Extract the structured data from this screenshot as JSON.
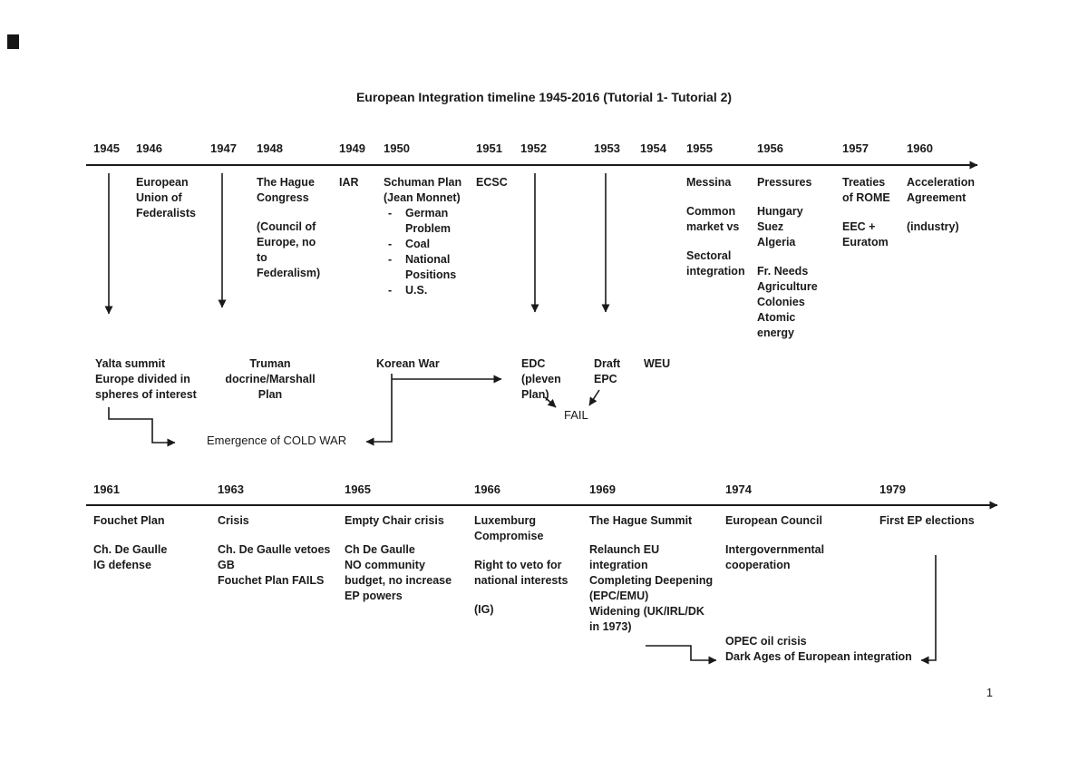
{
  "page": {
    "title": "European Integration timeline 1945-2016 (Tutorial 1- Tutorial 2)",
    "page_number": "1"
  },
  "colors": {
    "ink": "#1a1a1a",
    "paper": "#ffffff"
  },
  "timeline1": {
    "years": [
      "1945",
      "1946",
      "1947",
      "1948",
      "1949",
      "1950",
      "1951",
      "1952",
      "1953",
      "1954",
      "1955",
      "1956",
      "1957",
      "1960"
    ],
    "events": {
      "federalists": [
        "European",
        "Union of",
        "Federalists"
      ],
      "hague_congress": [
        "The Hague",
        "Congress",
        {
          "text": "(Council of",
          "gap": true
        },
        "Europe, no",
        "to",
        "Federalism)"
      ],
      "iar": [
        "IAR"
      ],
      "schuman_plan": [
        "Schuman Plan",
        "(Jean Monnet)",
        {
          "text": "German",
          "bullet": "-"
        },
        {
          "text": "Problem",
          "indent": true
        },
        {
          "text": "Coal",
          "bullet": "-"
        },
        {
          "text": "National",
          "bullet": "-"
        },
        {
          "text": "Positions",
          "indent": true
        },
        {
          "text": "U.S.",
          "bullet": "-"
        }
      ],
      "ecsc": [
        "ECSC"
      ],
      "messina": [
        "Messina",
        {
          "text": "Common",
          "gap": true
        },
        "market vs",
        {
          "text": "Sectoral",
          "gap": true
        },
        "integration"
      ],
      "pressures": [
        "Pressures",
        {
          "text": "Hungary",
          "gap": true
        },
        "Suez",
        "Algeria",
        {
          "text": "Fr. Needs",
          "gap": true
        },
        "Agriculture",
        "Colonies",
        "Atomic",
        "energy"
      ],
      "treaties_of_rome": [
        "Treaties",
        "of ROME",
        {
          "text": "EEC +",
          "gap": true
        },
        "Euratom"
      ],
      "acceleration": [
        "Acceleration",
        "Agreement",
        {
          "text": "(industry)",
          "gap": true
        }
      ]
    },
    "below": {
      "yalta": [
        "Yalta summit",
        "Europe divided in",
        "spheres of interest"
      ],
      "truman": [
        "Truman",
        "docrine/Marshall",
        "Plan"
      ],
      "korean_war": [
        "Korean War"
      ],
      "edc": [
        "EDC",
        "(pleven",
        "Plan)"
      ],
      "draft_epc": [
        "Draft",
        "EPC"
      ],
      "weu": [
        "WEU"
      ],
      "fail": "FAIL",
      "cold_war": "Emergence of COLD WAR"
    }
  },
  "timeline2": {
    "years": [
      "1961",
      "1963",
      "1965",
      "1966",
      "1969",
      "1974",
      "1979"
    ],
    "events": {
      "fouchet": [
        "Fouchet Plan",
        {
          "text": "Ch. De Gaulle",
          "gap": true
        },
        "IG defense"
      ],
      "crisis": [
        "Crisis",
        {
          "text": "Ch. De Gaulle vetoes",
          "gap": true
        },
        "GB",
        "Fouchet Plan FAILS"
      ],
      "empty_chair": [
        "Empty Chair crisis",
        {
          "text": "Ch De Gaulle",
          "gap": true
        },
        "NO community",
        "budget, no increase",
        "EP powers"
      ],
      "luxemburg": [
        "Luxemburg",
        "Compromise",
        {
          "text": "Right to veto for",
          "gap": true
        },
        "national interests",
        {
          "text": "(IG)",
          "gap": true
        }
      ],
      "hague_summit": [
        "The Hague Summit",
        {
          "text": "Relaunch EU",
          "gap": true
        },
        "integration",
        "Completing Deepening",
        "(EPC/EMU)",
        "Widening (UK/IRL/DK",
        "in 1973)"
      ],
      "european_council": [
        "European Council",
        {
          "text": "Intergovernmental",
          "gap": true
        },
        "cooperation"
      ],
      "first_ep": [
        "First EP elections"
      ],
      "opec_dark_ages": [
        "OPEC oil crisis",
        "Dark Ages of European integration"
      ]
    }
  }
}
